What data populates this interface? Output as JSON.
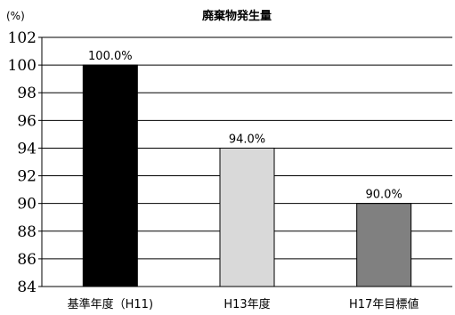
{
  "chart_data": {
    "type": "bar",
    "title": "廃棄物発生量",
    "unit_label": "(%)",
    "categories": [
      "基準年度（H11)",
      "H13年度",
      "H17年目標値"
    ],
    "values": [
      100.0,
      94.0,
      90.0
    ],
    "data_labels": [
      "100.0%",
      "94.0%",
      "90.0%"
    ],
    "bar_colors": [
      "#000000",
      "#d9d9d9",
      "#808080"
    ],
    "ylim": [
      84,
      102
    ],
    "yticks": [
      84,
      86,
      88,
      90,
      92,
      94,
      96,
      98,
      100,
      102
    ],
    "grid": true,
    "legend": "none"
  }
}
